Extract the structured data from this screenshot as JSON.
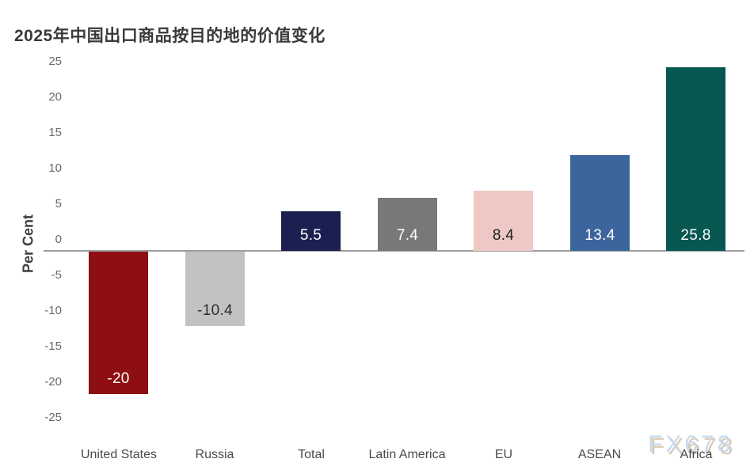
{
  "title": "2025年中国出口商品按目的地的价值变化",
  "watermark": "FX678",
  "chart_data": {
    "type": "bar",
    "title": "2025年中国出口商品按目的地的价值变化",
    "xlabel": "",
    "ylabel": "Per Cent",
    "ylim": [
      -25,
      25
    ],
    "ytick_interval": 5,
    "yticks": [
      25,
      20,
      15,
      10,
      5,
      0,
      -5,
      -10,
      -15,
      -20,
      -25
    ],
    "grid": false,
    "legend": "none",
    "categories": [
      "United States",
      "Russia",
      "Total",
      "Latin America",
      "EU",
      "ASEAN",
      "Africa"
    ],
    "values": [
      -20,
      -10.4,
      5.5,
      7.4,
      8.4,
      13.4,
      25.8
    ],
    "value_labels": [
      "-20",
      "-10.4",
      "5.5",
      "7.4",
      "8.4",
      "13.4",
      "25.8"
    ],
    "bar_colors": [
      "#8e0f13",
      "#c2c2c2",
      "#1c2050",
      "#787878",
      "#eec8c4",
      "#3d659d",
      "#05574f"
    ],
    "value_label_colors": [
      "#ffffff",
      "#2e2e2e",
      "#ffffff",
      "#ffffff",
      "#1f1f1f",
      "#ffffff",
      "#ffffff"
    ]
  },
  "colors": {
    "background": "#ffffff",
    "title": "#3a3a3a",
    "axis_line": "#9e9e9e",
    "tick_text": "#6a6a6a",
    "x_label_text": "#4a4a4a",
    "watermark_text": "#c6dbee",
    "watermark_shadow": "#d9c8b3"
  }
}
